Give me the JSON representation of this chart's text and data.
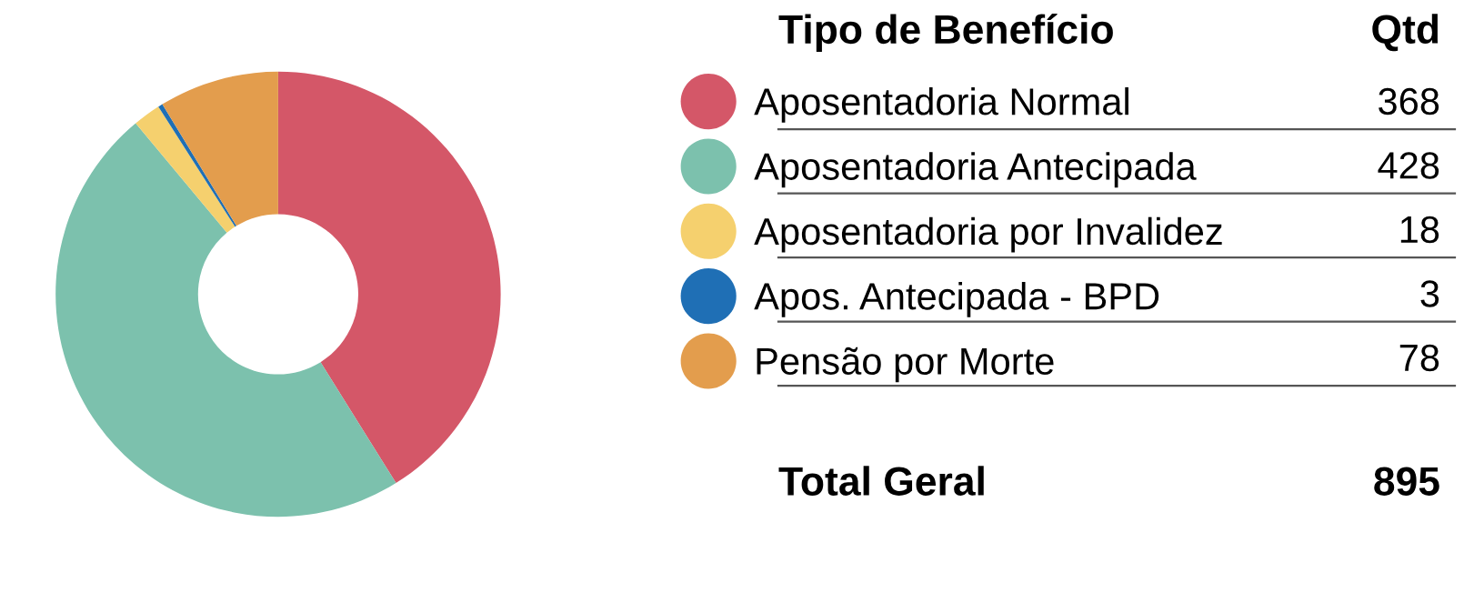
{
  "chart_data": {
    "type": "donut",
    "legend_title": "Tipo de Benefício",
    "categories": [
      "Aposentadoria Normal",
      "Aposentadoria Antecipada",
      "Aposentadoria por Invalidez",
      "Apos. Antecipada - BPD",
      "Pensão por Morte"
    ],
    "values": [
      368,
      428,
      18,
      3,
      78
    ],
    "colors": [
      "#d45768",
      "#7cc1ad",
      "#f5d06e",
      "#1f6fb5",
      "#e39d4d"
    ],
    "data_labels": true,
    "legend": "right",
    "totals": [
      "895"
    ],
    "annotations": [
      "Qtd",
      "Total Geral"
    ]
  }
}
